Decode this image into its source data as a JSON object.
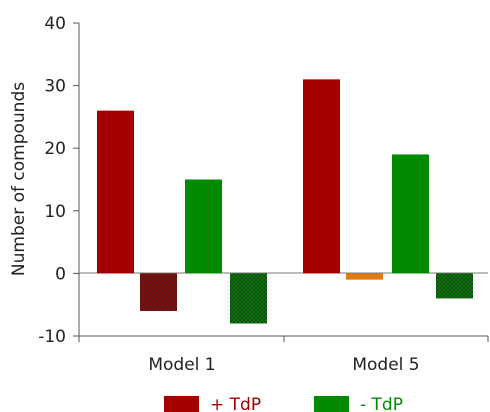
{
  "chart_data": {
    "type": "bar",
    "ylabel": "Number of compounds",
    "y_ticks": [
      "40",
      "30",
      "20",
      "10",
      "0",
      "-10"
    ],
    "ylim": [
      -10,
      40
    ],
    "categories": [
      "Model 1",
      "Model 5"
    ],
    "bars": [
      {
        "category": "Model 1",
        "value": 26,
        "color": "#a50000",
        "hatched": false
      },
      {
        "category": "Model 1",
        "value": -6,
        "color": "#a50000",
        "hatched": true
      },
      {
        "category": "Model 1",
        "value": 15,
        "color": "#008a00",
        "hatched": false
      },
      {
        "category": "Model 1",
        "value": -8,
        "color": "#008a00",
        "hatched": true
      },
      {
        "category": "Model 5",
        "value": 31,
        "color": "#a50000",
        "hatched": false
      },
      {
        "category": "Model 5",
        "value": -1,
        "color": "#e07b10",
        "hatched": false
      },
      {
        "category": "Model 5",
        "value": 19,
        "color": "#008a00",
        "hatched": false
      },
      {
        "category": "Model 5",
        "value": -4,
        "color": "#008a00",
        "hatched": true
      }
    ],
    "legend": [
      {
        "label": "+ TdP",
        "color": "#a50000"
      },
      {
        "label": "- TdP",
        "color": "#008a00"
      }
    ],
    "legend_position": "bottom",
    "grid": false
  }
}
